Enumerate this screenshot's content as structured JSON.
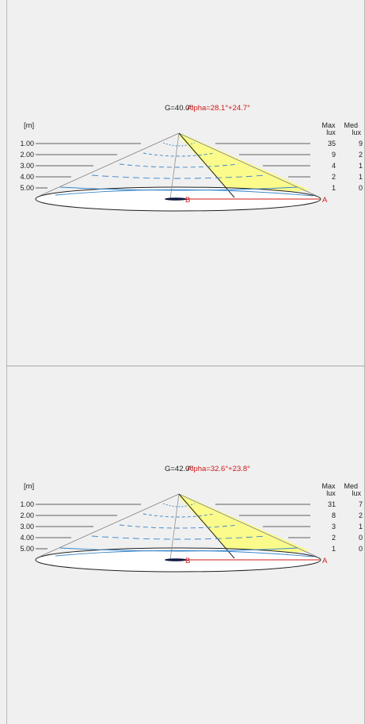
{
  "colors": {
    "red": "#d01818",
    "blue": "#3a86c8",
    "yellow": "#fbfb8c",
    "dark": "#202020"
  },
  "diagrams": [
    {
      "gamma_label": "G=40.0°",
      "alpha_label": "Alpha=28.1°+24.7°",
      "unit_label": "[m]",
      "col_max": [
        "Max",
        "lux"
      ],
      "col_med": [
        "Med",
        "lux"
      ],
      "rows": [
        {
          "distance": "1.00",
          "max": "35",
          "med": "9"
        },
        {
          "distance": "2.00",
          "max": "9",
          "med": "2"
        },
        {
          "distance": "3.00",
          "max": "4",
          "med": "1"
        },
        {
          "distance": "4.00",
          "max": "2",
          "med": "1"
        },
        {
          "distance": "5.00",
          "max": "1",
          "med": "0"
        }
      ],
      "point_b": "B",
      "point_a": "A"
    },
    {
      "gamma_label": "G=42.0°",
      "alpha_label": "Alpha=32.6°+23.8°",
      "unit_label": "[m]",
      "col_max": [
        "Max",
        "lux"
      ],
      "col_med": [
        "Med",
        "lux"
      ],
      "rows": [
        {
          "distance": "1.00",
          "max": "31",
          "med": "7"
        },
        {
          "distance": "2.00",
          "max": "8",
          "med": "2"
        },
        {
          "distance": "3.00",
          "max": "3",
          "med": "1"
        },
        {
          "distance": "4.00",
          "max": "2",
          "med": "0"
        },
        {
          "distance": "5.00",
          "max": "1",
          "med": "0"
        }
      ],
      "point_b": "B",
      "point_a": "A"
    }
  ]
}
